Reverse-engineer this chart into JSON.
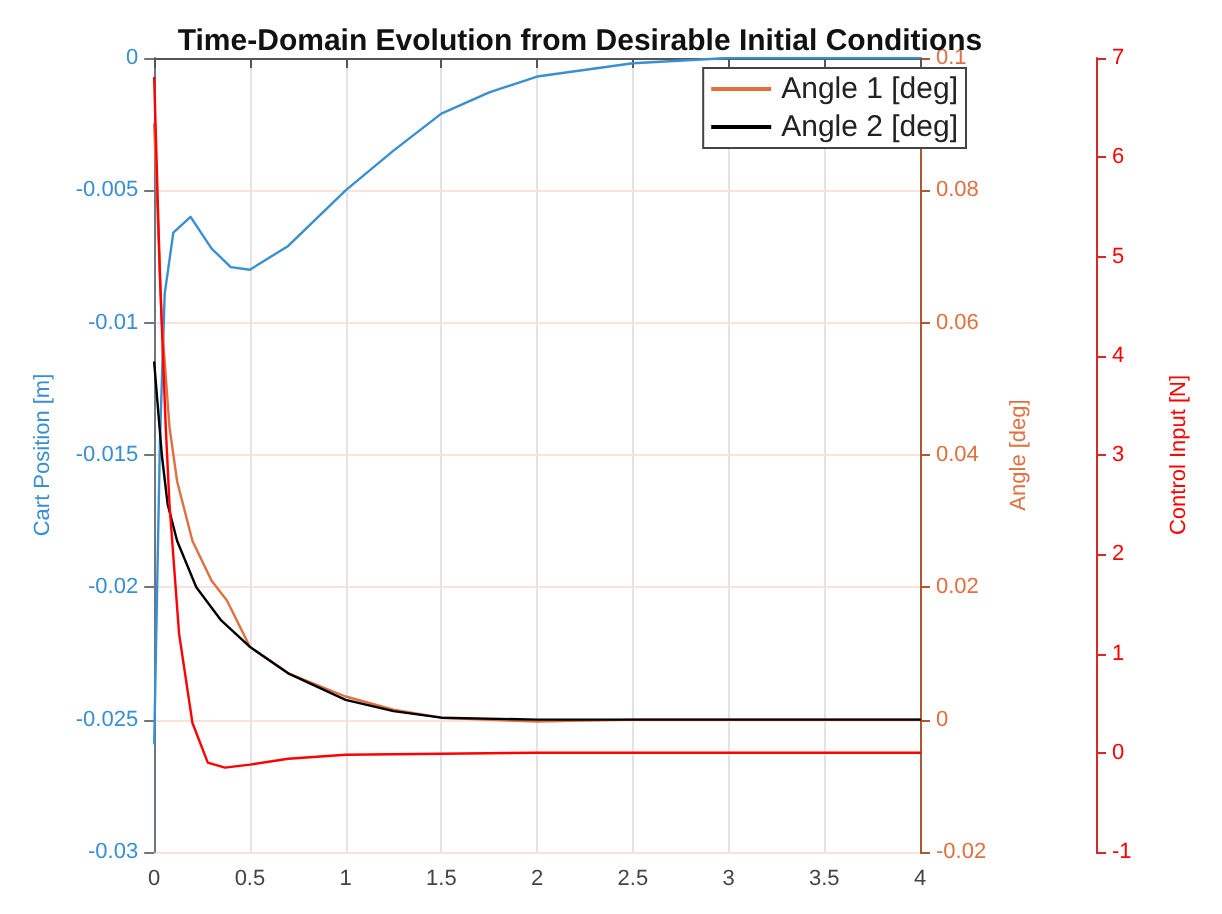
{
  "chart_data": {
    "type": "line",
    "title": "Time-Domain Evolution from Desirable Initial Conditions",
    "ylabel": "Cart Position [m]",
    "y2label": "Angle [deg]",
    "y3label": "Control Input [N]",
    "xlim": [
      0,
      4
    ],
    "xticks": [
      0,
      0.5,
      1,
      1.5,
      2,
      2.5,
      3,
      3.5,
      4
    ],
    "ylim": [
      -0.03,
      0
    ],
    "yticks": [
      -0.03,
      -0.025,
      -0.02,
      -0.015,
      -0.01,
      -0.005,
      0
    ],
    "y2lim": [
      -0.02,
      0.1
    ],
    "y2ticks": [
      -0.02,
      0,
      0.02,
      0.04,
      0.06,
      0.08,
      0.1
    ],
    "y3lim": [
      -1,
      7
    ],
    "y3ticks": [
      -1,
      0,
      1,
      2,
      3,
      4,
      5,
      6,
      7
    ],
    "grid": true,
    "legend": "top right",
    "marker": "none",
    "line_style": "solid",
    "series": [
      {
        "color": "#3a8fd0",
        "axis": "y",
        "x": [
          0,
          0.03,
          0.055,
          0.1,
          0.19,
          0.3,
          0.4,
          0.5,
          0.7,
          1.0,
          1.25,
          1.5,
          1.75,
          2.0,
          2.5,
          3.0,
          3.5,
          4.0
        ],
        "values": [
          -0.0259,
          -0.0145,
          -0.0089,
          -0.0066,
          -0.006,
          -0.0072,
          -0.0079,
          -0.008,
          -0.0071,
          -0.005,
          -0.0035,
          -0.0021,
          -0.0013,
          -0.0007,
          -0.0002,
          0,
          0,
          0
        ]
      },
      {
        "name": "Angle 1 [deg]",
        "color": "#e07040",
        "axis": "y2",
        "x": [
          0,
          0.04,
          0.08,
          0.12,
          0.2,
          0.3,
          0.38,
          0.5,
          0.7,
          1.0,
          1.25,
          1.5,
          2.0,
          2.5,
          3.0,
          4.0
        ],
        "values": [
          0.09,
          0.06,
          0.0442,
          0.036,
          0.027,
          0.021,
          0.018,
          0.011,
          0.007,
          0.0035,
          0.0015,
          0.0003,
          -0.0003,
          0,
          0,
          0
        ]
      },
      {
        "name": "Angle 2 [deg]",
        "color": "#000000",
        "axis": "y2",
        "x": [
          0,
          0.04,
          0.07,
          0.12,
          0.22,
          0.35,
          0.5,
          0.7,
          1.0,
          1.25,
          1.5,
          2.0,
          3.0,
          4.0
        ],
        "values": [
          0.054,
          0.04,
          0.0326,
          0.027,
          0.02,
          0.015,
          0.011,
          0.007,
          0.003,
          0.0013,
          0.0003,
          0,
          0,
          0
        ]
      },
      {
        "color": "#ff0000",
        "axis": "y3",
        "x": [
          0,
          0.03,
          0.06,
          0.08,
          0.13,
          0.2,
          0.28,
          0.37,
          0.5,
          0.7,
          1.0,
          1.5,
          2.0,
          3.0,
          4.0
        ],
        "values": [
          6.8,
          4.8,
          3.3,
          2.5,
          1.2,
          0.3,
          -0.1,
          -0.15,
          -0.12,
          -0.06,
          -0.02,
          -0.01,
          0,
          0,
          0
        ]
      }
    ]
  }
}
